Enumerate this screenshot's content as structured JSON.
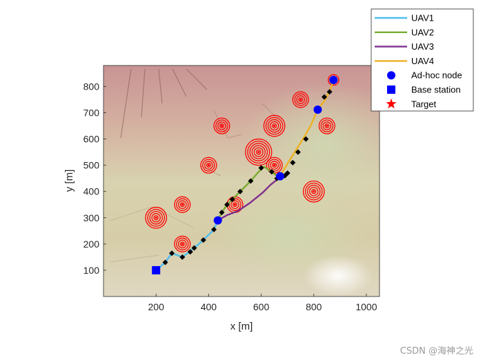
{
  "chart_data": {
    "type": "line",
    "xlabel": "x [m]",
    "ylabel": "y [m]",
    "xlim": [
      0,
      1050
    ],
    "ylim": [
      0,
      880
    ],
    "x_ticks": [
      200,
      400,
      600,
      800,
      1000
    ],
    "y_ticks": [
      100,
      200,
      300,
      400,
      500,
      600,
      700,
      800
    ],
    "grid": false,
    "legend_position": "top-right",
    "colors": {
      "UAV1": "#4DBEEE",
      "UAV2": "#77AC30",
      "UAV3": "#7E2F8E",
      "UAV4": "#EDB120",
      "adhoc": "#0000FF",
      "base": "#0000FF",
      "target": "#FF0000",
      "waypoint": "#000000"
    },
    "series": [
      {
        "name": "UAV1",
        "points": [
          [
            200,
            100
          ],
          [
            235,
            130
          ],
          [
            260,
            165
          ],
          [
            300,
            150
          ],
          [
            345,
            185
          ],
          [
            380,
            215
          ],
          [
            420,
            255
          ],
          [
            435,
            290
          ]
        ]
      },
      {
        "name": "UAV2",
        "points": [
          [
            435,
            290
          ],
          [
            450,
            320
          ],
          [
            470,
            350
          ],
          [
            500,
            380
          ],
          [
            530,
            410
          ],
          [
            560,
            440
          ],
          [
            590,
            475
          ],
          [
            610,
            495
          ],
          [
            640,
            475
          ],
          [
            665,
            455
          ]
        ]
      },
      {
        "name": "UAV3",
        "points": [
          [
            435,
            290
          ],
          [
            470,
            310
          ],
          [
            510,
            325
          ],
          [
            555,
            355
          ],
          [
            605,
            395
          ],
          [
            635,
            425
          ],
          [
            660,
            445
          ],
          [
            672,
            458
          ]
        ]
      },
      {
        "name": "UAV4",
        "points": [
          [
            672,
            458
          ],
          [
            690,
            490
          ],
          [
            715,
            530
          ],
          [
            740,
            570
          ],
          [
            765,
            610
          ],
          [
            790,
            655
          ],
          [
            815,
            712
          ],
          [
            840,
            745
          ],
          [
            862,
            785
          ],
          [
            875,
            825
          ]
        ]
      }
    ],
    "waypoints": [
      [
        235,
        130
      ],
      [
        260,
        165
      ],
      [
        300,
        150
      ],
      [
        330,
        170
      ],
      [
        345,
        185
      ],
      [
        380,
        215
      ],
      [
        420,
        255
      ],
      [
        450,
        320
      ],
      [
        470,
        350
      ],
      [
        490,
        370
      ],
      [
        520,
        400
      ],
      [
        560,
        440
      ],
      [
        600,
        490
      ],
      [
        640,
        475
      ],
      [
        660,
        450
      ],
      [
        690,
        460
      ],
      [
        700,
        470
      ],
      [
        720,
        510
      ],
      [
        740,
        550
      ],
      [
        770,
        600
      ],
      [
        810,
        710
      ],
      [
        840,
        760
      ],
      [
        860,
        780
      ],
      [
        880,
        820
      ]
    ],
    "adhoc_nodes": [
      [
        435,
        290
      ],
      [
        672,
        458
      ],
      [
        815,
        712
      ],
      [
        875,
        825
      ]
    ],
    "base_station": [
      200,
      100
    ],
    "targets": [
      {
        "x": 200,
        "y": 300,
        "r": 40
      },
      {
        "x": 300,
        "y": 350,
        "r": 30
      },
      {
        "x": 300,
        "y": 200,
        "r": 30
      },
      {
        "x": 400,
        "y": 500,
        "r": 30
      },
      {
        "x": 450,
        "y": 650,
        "r": 30
      },
      {
        "x": 500,
        "y": 350,
        "r": 30
      },
      {
        "x": 590,
        "y": 550,
        "r": 50
      },
      {
        "x": 650,
        "y": 650,
        "r": 40
      },
      {
        "x": 650,
        "y": 500,
        "r": 30
      },
      {
        "x": 750,
        "y": 750,
        "r": 30
      },
      {
        "x": 800,
        "y": 400,
        "r": 40
      },
      {
        "x": 850,
        "y": 650,
        "r": 30
      },
      {
        "x": 875,
        "y": 825,
        "r": 20
      }
    ],
    "legend": [
      {
        "label": "UAV1",
        "kind": "line",
        "key": "UAV1"
      },
      {
        "label": "UAV2",
        "kind": "line",
        "key": "UAV2"
      },
      {
        "label": "UAV3",
        "kind": "line",
        "key": "UAV3"
      },
      {
        "label": "UAV4",
        "kind": "line",
        "key": "UAV4"
      },
      {
        "label": "Ad-hoc node",
        "kind": "circle",
        "key": "adhoc"
      },
      {
        "label": "Base station",
        "kind": "square",
        "key": "base"
      },
      {
        "label": "Target",
        "kind": "star",
        "key": "target"
      }
    ]
  },
  "watermark": "CSDN @海神之光"
}
